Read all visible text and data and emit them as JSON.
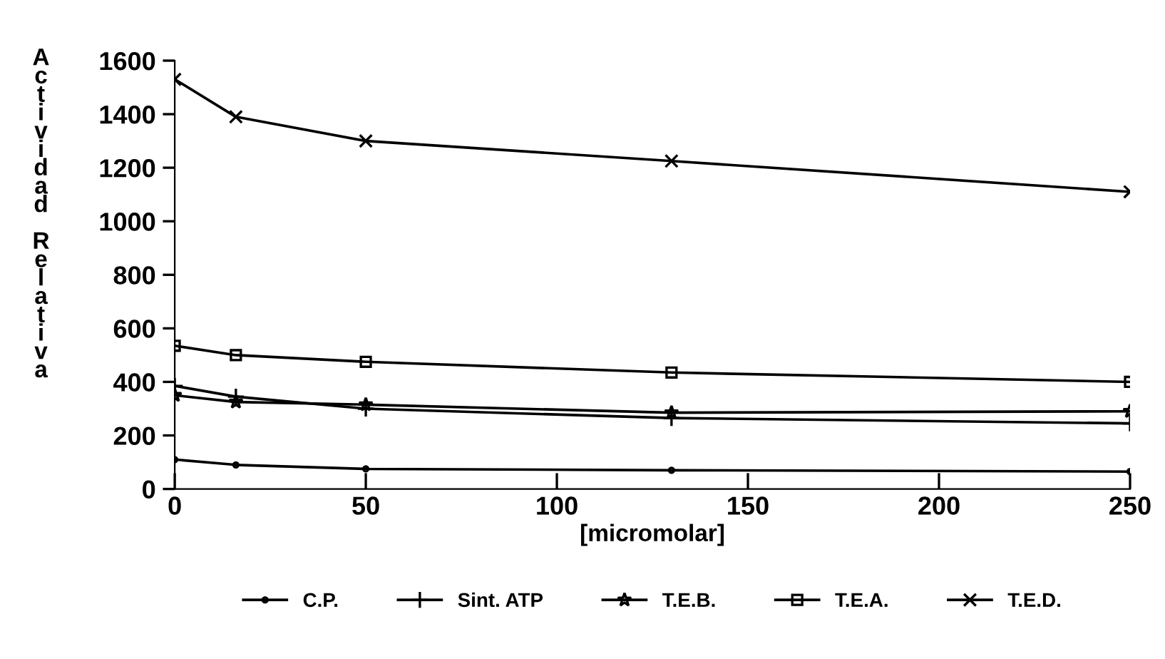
{
  "chart_data": {
    "type": "line",
    "xlabel": "[micromolar]",
    "ylabel": "Actividad Relativa",
    "x": [
      0,
      16,
      50,
      130,
      250
    ],
    "series": [
      {
        "name": "C.P.",
        "color": "#000000",
        "marker": "circle",
        "values": [
          110,
          90,
          75,
          70,
          65
        ]
      },
      {
        "name": "Sint. ATP",
        "color": "#000000",
        "marker": "plus",
        "values": [
          385,
          345,
          300,
          265,
          245
        ]
      },
      {
        "name": "T.E.B.",
        "color": "#000000",
        "marker": "star",
        "values": [
          350,
          325,
          315,
          285,
          290
        ]
      },
      {
        "name": "T.E.A.",
        "color": "#000000",
        "marker": "square",
        "values": [
          535,
          500,
          475,
          435,
          400
        ]
      },
      {
        "name": "T.E.D.",
        "color": "#000000",
        "marker": "cross",
        "values": [
          1530,
          1390,
          1300,
          1225,
          1110
        ]
      }
    ],
    "xlim": [
      0,
      250
    ],
    "xticks": [
      0,
      50,
      100,
      150,
      200,
      250
    ],
    "ylim": [
      0,
      1600
    ],
    "yticks": [
      0,
      200,
      400,
      600,
      800,
      1000,
      1200,
      1400,
      1600
    ],
    "grid": false,
    "legend": "bottom",
    "line_style": "solid"
  }
}
